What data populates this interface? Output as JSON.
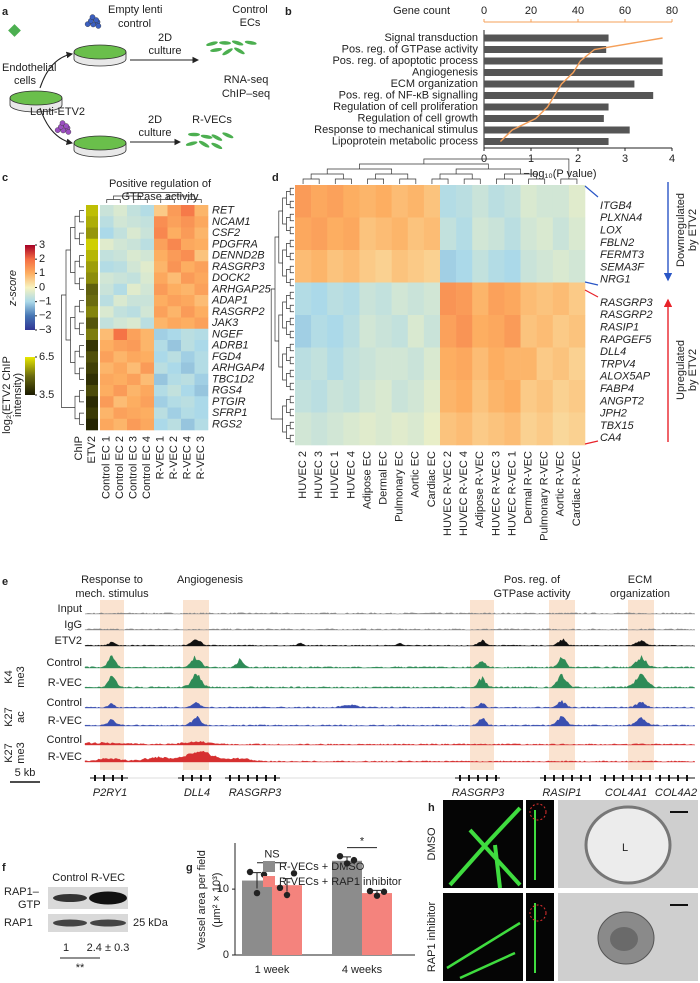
{
  "panel_labels": [
    "a",
    "b",
    "c",
    "d",
    "e",
    "f",
    "g",
    "h"
  ],
  "schematic": {
    "endothelial_cells": [
      "Endothelial",
      "cells"
    ],
    "empty_lenti": [
      "Empty lenti",
      "control"
    ],
    "lenti_etv2": "Lenti-ETV2",
    "culture_control": [
      "2D",
      "culture"
    ],
    "culture_etv2": [
      "2D",
      "culture"
    ],
    "control_ecs": [
      "Control",
      "ECs"
    ],
    "rvecs": "R-VECs",
    "assays": [
      "RNA-seq",
      "ChIP–seq"
    ]
  },
  "chart_data": [
    {
      "type": "bar",
      "orientation": "horizontal",
      "categories": [
        "Signal transduction",
        "Pos. reg. of GTPase activity",
        "Pos. reg. of apoptotic process",
        "Angiogenesis",
        "ECM organization",
        "Pos. reg. of NF-κB signalling",
        "Regulation of cell proliferation",
        "Regulation of cell growth",
        "Response to mechanical stimulus",
        "Lipoprotein metabolic process"
      ],
      "label_colors": [
        "#222222",
        "#e8232a",
        "#222222",
        "#e8232a",
        "#e8232a",
        "#222222",
        "#222222",
        "#222222",
        "#e8232a",
        "#222222"
      ],
      "values": [
        2.65,
        2.6,
        3.8,
        3.8,
        3.2,
        3.6,
        2.65,
        2.55,
        3.1,
        2.65
      ],
      "color": "#555555",
      "x_label": "−log₁₀(P value)",
      "xlim": [
        0,
        4
      ],
      "xticks": [
        0,
        1,
        2,
        3,
        4
      ],
      "line": {
        "label": "Gene count",
        "color": "#f5a05a",
        "values": [
          76,
          47,
          41,
          38,
          33,
          30,
          27,
          22,
          12,
          7
        ],
        "xlim": [
          0,
          80
        ],
        "xticks": [
          0,
          20,
          40,
          60,
          80
        ]
      }
    },
    {
      "type": "heatmap",
      "title": [
        "Positive regulation of",
        "GTPase activity"
      ],
      "rows": [
        "RET",
        "NCAM1",
        "CSF2",
        "PDGFRA",
        "DENND2B",
        "RASGRP3",
        "DOCK2",
        "ARHGAP25",
        "ADAP1",
        "RASGRP2",
        "JAK3",
        "NGEF",
        "ADRB1",
        "FGD4",
        "ARHGAP4",
        "TBC1D2",
        "RGS4",
        "PTGIR",
        "SFRP1",
        "RGS2"
      ],
      "columns": [
        "Control EC 1",
        "Control EC 2",
        "Control EC 3",
        "Control EC 4",
        "R-VEC 1",
        "R-VEC 2",
        "R-VEC 4",
        "R-VEC 3"
      ],
      "values": [
        [
          -0.6,
          -0.4,
          -0.7,
          -0.9,
          0.6,
          1.3,
          1.8,
          0.9
        ],
        [
          -0.8,
          -0.5,
          -0.6,
          -0.7,
          1.5,
          1.2,
          1.4,
          1.1
        ],
        [
          -1.0,
          -0.7,
          -0.4,
          -0.6,
          1.6,
          1.0,
          1.3,
          0.9
        ],
        [
          -0.3,
          -0.5,
          -0.6,
          -0.8,
          1.2,
          1.6,
          1.1,
          1.0
        ],
        [
          -0.7,
          -0.6,
          -0.4,
          -0.5,
          1.0,
          1.3,
          1.5,
          0.7
        ],
        [
          -0.9,
          -0.8,
          -0.5,
          -0.3,
          0.9,
          1.4,
          1.0,
          1.2
        ],
        [
          -0.5,
          -0.6,
          -0.7,
          -0.4,
          1.1,
          0.8,
          1.3,
          1.1
        ],
        [
          -0.6,
          -0.9,
          -0.3,
          -0.5,
          1.3,
          1.0,
          0.9,
          1.2
        ],
        [
          -0.8,
          -0.4,
          -0.6,
          -0.6,
          1.0,
          1.2,
          1.1,
          0.8
        ],
        [
          -0.4,
          -0.7,
          -0.8,
          -0.5,
          1.2,
          0.9,
          1.3,
          1.0
        ],
        [
          -0.7,
          -0.5,
          -0.4,
          -0.8,
          0.9,
          1.1,
          1.0,
          1.2
        ],
        [
          0.8,
          1.9,
          1.2,
          0.9,
          -1.1,
          -1.0,
          -0.8,
          -0.9
        ],
        [
          1.0,
          1.2,
          1.3,
          0.9,
          -0.9,
          -1.2,
          -0.8,
          -1.0
        ],
        [
          1.2,
          0.9,
          1.1,
          1.0,
          -1.0,
          -0.8,
          -1.1,
          -0.9
        ],
        [
          0.9,
          1.1,
          0.8,
          1.3,
          -0.8,
          -1.0,
          -1.2,
          -0.9
        ],
        [
          1.1,
          1.0,
          1.2,
          0.8,
          -1.2,
          -0.9,
          -0.8,
          -1.1
        ],
        [
          1.0,
          1.3,
          0.9,
          1.1,
          -0.9,
          -0.7,
          -1.0,
          -1.2
        ],
        [
          1.3,
          0.8,
          1.0,
          1.2,
          -1.1,
          -0.9,
          -0.8,
          -1.0
        ],
        [
          0.9,
          1.2,
          1.1,
          1.0,
          -0.8,
          -1.1,
          -0.9,
          -1.0
        ],
        [
          1.1,
          0.9,
          1.3,
          1.1,
          -1.0,
          -0.8,
          -1.2,
          -0.9
        ]
      ],
      "colormap": [
        "#313695",
        "#4575b4",
        "#abd9e9",
        "#f7f3c0",
        "#fdae61",
        "#f46d43",
        "#a50026"
      ],
      "zlim": [
        -3,
        3
      ],
      "zticks": [
        3,
        2,
        1,
        0,
        {
          "value": -1,
          "label": "−1"
        },
        {
          "value": -2,
          "label": "−2"
        },
        {
          "value": -3,
          "label": "−3"
        }
      ],
      "colorbar_label": "z-score",
      "annotation": {
        "label": [
          "ETV2",
          "ChIP"
        ],
        "values": [
          6.0,
          5.8,
          5.5,
          6.2,
          5.9,
          5.6,
          5.4,
          4.8,
          5.0,
          5.3,
          4.6,
          5.2,
          4.0,
          4.5,
          4.2,
          3.9,
          4.4,
          3.8,
          4.1,
          3.7
        ],
        "colormap": [
          "#1a1a00",
          "#6b6b10",
          "#e8e800"
        ],
        "zlim": [
          3.5,
          6.5
        ],
        "zticks": [
          6.5,
          3.5
        ],
        "colorbar_label": [
          "log₂(ETV2 ChIP",
          "intensity)"
        ]
      }
    },
    {
      "type": "heatmap",
      "columns": [
        "HUVEC 2",
        "HUVEC 3",
        "HUVEC 1",
        "HUVEC 4",
        "Adipose EC",
        "Dermal EC",
        "Pulmonary EC",
        "Aortic EC",
        "Cardiac EC",
        "HUVEC R-VEC 2",
        "HUVEC R-VEC 4",
        "Adipose R-VEC",
        "HUVEC R-VEC 3",
        "HUVEC R-VEC 1",
        "Dermal R-VEC",
        "Pulmonary R-VEC",
        "Aortic R-VEC",
        "Cardiac R-VEC"
      ],
      "values": [
        [
          1.3,
          1.1,
          1.2,
          1.0,
          0.9,
          1.0,
          0.8,
          0.9,
          0.7,
          -0.9,
          -0.8,
          -0.6,
          -0.8,
          -0.7,
          -0.4,
          -0.5,
          -0.5,
          -0.3
        ],
        [
          1.1,
          1.2,
          1.0,
          1.1,
          0.7,
          0.8,
          0.9,
          0.7,
          0.8,
          -0.7,
          -0.9,
          -0.5,
          -0.6,
          -0.8,
          -0.5,
          -0.4,
          -0.6,
          -0.4
        ],
        [
          0.8,
          0.9,
          0.7,
          0.8,
          0.6,
          0.5,
          0.7,
          0.6,
          0.5,
          -1.1,
          -1.0,
          -0.7,
          -0.9,
          -1.0,
          -0.6,
          -0.5,
          -0.4,
          -0.5
        ],
        [
          -0.9,
          -1.0,
          -0.8,
          -0.9,
          -0.6,
          -0.7,
          -0.5,
          -0.6,
          -0.5,
          1.4,
          1.3,
          0.9,
          1.2,
          1.1,
          0.8,
          0.7,
          0.8,
          0.6
        ],
        [
          -1.1,
          -0.9,
          -1.0,
          -0.8,
          -0.5,
          -0.6,
          -0.7,
          -0.4,
          -0.6,
          1.2,
          1.4,
          1.0,
          1.1,
          1.3,
          0.7,
          0.8,
          0.6,
          0.7
        ],
        [
          -0.8,
          -0.7,
          -0.9,
          -0.7,
          -0.6,
          -0.5,
          -0.5,
          -0.6,
          -0.4,
          1.0,
          1.1,
          0.8,
          1.0,
          0.9,
          0.9,
          0.6,
          0.7,
          0.5
        ],
        [
          -0.7,
          -0.8,
          -0.6,
          -0.7,
          -0.5,
          -0.4,
          -0.6,
          -0.5,
          -0.3,
          0.9,
          1.0,
          0.7,
          0.9,
          1.0,
          0.6,
          0.7,
          0.5,
          0.6
        ],
        [
          -0.5,
          -0.6,
          -0.5,
          -0.4,
          -0.3,
          -0.4,
          -0.3,
          -0.4,
          -0.2,
          0.7,
          0.8,
          0.6,
          0.7,
          0.8,
          0.5,
          0.6,
          0.4,
          0.5
        ]
      ],
      "colormap": [
        "#313695",
        "#4575b4",
        "#abd9e9",
        "#f7f3c0",
        "#fdae61",
        "#f46d43",
        "#a50026"
      ],
      "zlim": [
        -3,
        3
      ],
      "down_genes": [
        "ITGB4",
        "PLXNA4",
        "LOX",
        "FBLN2",
        "FERMT3",
        "SEMA3F",
        "NRG1"
      ],
      "up_genes": [
        "RASGRP3",
        "RASGRP2",
        "RASIP1",
        "RAPGEF5",
        "DLL4",
        "TRPV4",
        "ALOX5AP",
        "FABP4",
        "ANGPT2",
        "JPH2",
        "TBX15",
        "CA4"
      ],
      "up_gene_colors": [
        "#e8232a",
        "#e8232a",
        "#e8232a",
        "#e8232a",
        "#222222",
        "#222222",
        "#222222",
        "#222222",
        "#222222",
        "#222222",
        "#222222",
        "#222222"
      ],
      "down_label": [
        "Downregulated",
        "by ETV2"
      ],
      "up_label": [
        "Upregulated",
        "by ETV2"
      ],
      "down_color": "#2a56c6",
      "up_color": "#e8232a"
    },
    {
      "type": "bar",
      "y_label": [
        "Vessel area per field",
        "(μm² × 10³)"
      ],
      "categories": [
        "1 week",
        "4 weeks"
      ],
      "series": [
        {
          "name": "R-VECs + DMSO",
          "color": "#8c8c8c",
          "values": [
            11.3,
            14.3
          ],
          "errors": [
            1.2,
            0.6
          ],
          "points": [
            [
              12.6,
              9.4,
              12.2
            ],
            [
              15.0,
              13.9,
              14.4
            ]
          ]
        },
        {
          "name": "R-VECs + RAP1 inhibitor",
          "color": "#f4837d",
          "values": [
            10.6,
            9.4
          ],
          "errors": [
            1.0,
            0.4
          ],
          "points": [
            [
              10.2,
              9.1,
              12.4
            ],
            [
              9.7,
              9.0,
              9.6
            ]
          ]
        }
      ],
      "ylim": [
        0,
        17
      ],
      "yticks": [
        0,
        10
      ],
      "annotations": [
        "NS",
        "*"
      ]
    }
  ],
  "genome_tracks": {
    "regions": [
      [
        "Response to",
        "mech. stimulus"
      ],
      [
        "Angiogenesis"
      ],
      [
        "Pos. reg. of",
        "GTPase activity"
      ],
      [
        "ECM",
        "organization"
      ]
    ],
    "tracks": [
      "Input",
      "IgG",
      "ETV2",
      "Control",
      "R-VEC",
      "Control",
      "R-VEC",
      "Control",
      "R-VEC"
    ],
    "groups": [
      [
        "K4",
        "me3"
      ],
      [
        "K27",
        "ac"
      ],
      [
        "K27",
        "me3"
      ]
    ],
    "scale_bar": "5 kb",
    "genes": [
      "P2RY1",
      "DLL4",
      "RASGRP3",
      "RASGRP3",
      "RASIP1",
      "COL4A1",
      "COL4A2"
    ]
  },
  "blot": {
    "columns": [
      "Control",
      "R-VEC"
    ],
    "rows": [
      [
        "RAP1–",
        "GTP"
      ],
      [
        "RAP1"
      ]
    ],
    "marker": "25 kDa",
    "quant": [
      1,
      "2.4 ± 0.3"
    ],
    "significance": "**"
  },
  "images": {
    "conditions": [
      "DMSO",
      "RAP1 inhibitor"
    ],
    "lumen_label": "L"
  }
}
